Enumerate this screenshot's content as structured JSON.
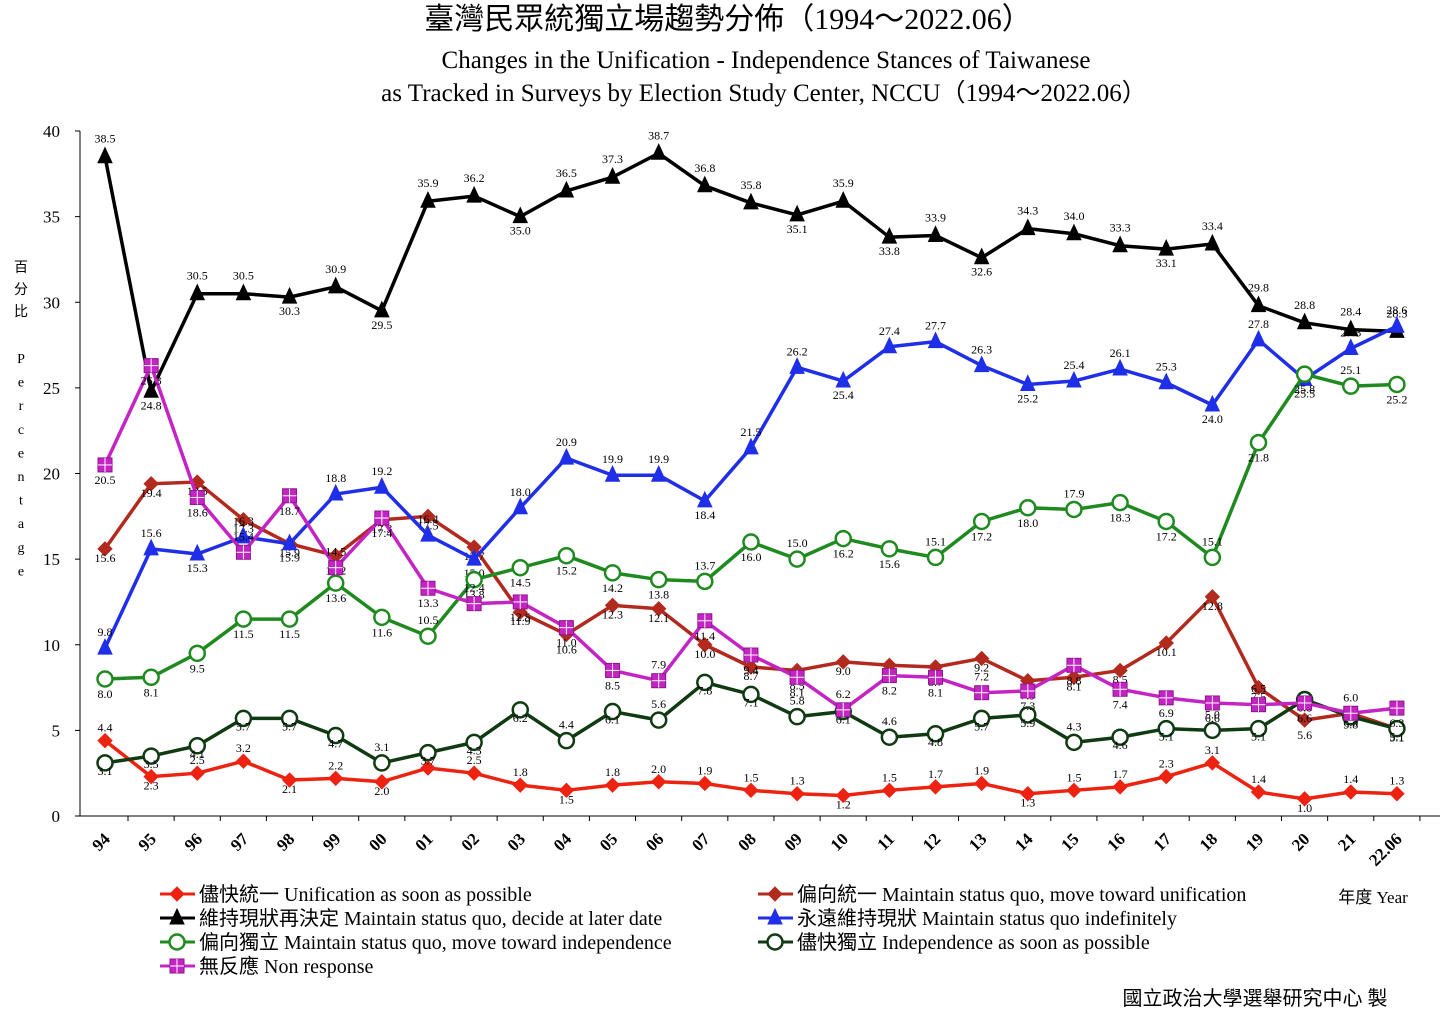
{
  "chart_data": {
    "type": "line",
    "title": "臺灣民眾統獨立場趨勢分佈（1994～2022.06）",
    "subtitle_line1": "Changes in the Unification - Independence Stances of Taiwanese",
    "subtitle_line2": "as Tracked in Surveys by Election Study Center, NCCU（1994～2022.06）",
    "ylabel_zh": [
      "百",
      "分",
      "比"
    ],
    "ylabel_en": [
      "P",
      "e",
      "r",
      "c",
      "e",
      "n",
      "t",
      "a",
      "g",
      "e"
    ],
    "xlabel": "年度 Year",
    "credit": "國立政治大學選舉研究中心 製",
    "ylim": [
      0,
      40
    ],
    "yticks": [
      "0",
      "5",
      "10",
      "15",
      "20",
      "25",
      "30",
      "35",
      "40"
    ],
    "categories": [
      "94",
      "95",
      "96",
      "97",
      "98",
      "99",
      "00",
      "01",
      "02",
      "03",
      "04",
      "05",
      "06",
      "07",
      "08",
      "09",
      "10",
      "11",
      "12",
      "13",
      "14",
      "15",
      "16",
      "17",
      "18",
      "19",
      "20",
      "21",
      "22.06"
    ],
    "series": [
      {
        "name": "儘快統一 Unification as soon as possible",
        "color": "#ee2211",
        "marker": "diamond",
        "values": [
          4.4,
          2.3,
          2.5,
          3.2,
          2.1,
          2.2,
          2.0,
          2.8,
          2.5,
          1.8,
          1.5,
          1.8,
          2.0,
          1.9,
          1.5,
          1.3,
          1.2,
          1.5,
          1.7,
          1.9,
          1.3,
          1.5,
          1.7,
          2.3,
          3.1,
          1.4,
          1.0,
          1.4,
          1.3
        ],
        "labels": [
          "4.4",
          "2.3",
          "2.5",
          "3.2",
          "2.1",
          "2.2",
          "2.0",
          "2.8",
          "2.5",
          "1.8",
          "1.5",
          "1.8",
          "2.0",
          "1.9",
          "1.5",
          "1.3",
          "1.2",
          "1.5",
          "1.7",
          "1.9",
          "1.3",
          "1.5",
          "1.7",
          "2.3",
          "3.1",
          "1.4",
          "1.0",
          "1.4",
          "1.3"
        ]
      },
      {
        "name": "偏向統一 Maintain status quo, move toward unification",
        "color": "#b22a1e",
        "marker": "diamond",
        "values": [
          15.6,
          19.4,
          19.5,
          17.3,
          15.9,
          15.2,
          17.3,
          17.5,
          15.7,
          11.9,
          10.6,
          12.3,
          12.1,
          10.0,
          8.7,
          8.5,
          9.0,
          8.8,
          8.7,
          9.2,
          7.9,
          8.1,
          8.5,
          10.1,
          12.8,
          7.5,
          5.6,
          6.0,
          5.1
        ],
        "labels": [
          "15.6",
          "19.4",
          "19.5",
          "17.3",
          "15.9",
          "15.2",
          "17.3",
          "17.5",
          "15.7",
          "11.9",
          "10.6",
          "12.3",
          "12.1",
          "10.0",
          "8.7",
          "8.5",
          "9.0",
          "8.8",
          "8.7",
          "9.2",
          "7.9",
          "8.1",
          "8.5",
          "10.1",
          "12.8",
          "7.5",
          "5.6",
          "6.0",
          "5.1"
        ]
      },
      {
        "name": "維持現狀再決定 Maintain status quo, decide at later date",
        "color": "#000000",
        "marker": "triangle",
        "values": [
          38.5,
          24.8,
          30.5,
          30.5,
          30.3,
          30.9,
          29.5,
          35.9,
          36.2,
          35.0,
          36.5,
          37.3,
          38.7,
          36.8,
          35.8,
          35.1,
          35.9,
          33.8,
          33.9,
          32.6,
          34.3,
          34.0,
          33.3,
          33.1,
          33.4,
          29.8,
          28.8,
          28.4,
          28.3
        ],
        "labels": [
          "38.5",
          "24.8",
          "30.5",
          "30.5",
          "30.3",
          "30.9",
          "29.5",
          "35.9",
          "36.2",
          "35.0",
          "36.5",
          "37.3",
          "38.7",
          "36.8",
          "35.8",
          "35.1",
          "35.9",
          "33.8",
          "33.9",
          "32.6",
          "34.3",
          "34.0",
          "33.3",
          "33.1",
          "33.4",
          "29.8",
          "28.8",
          "28.4",
          "28.3"
        ]
      },
      {
        "name": "永遠維持現狀 Maintain status quo indefinitely",
        "color": "#1f2ee8",
        "marker": "triangle",
        "values": [
          9.8,
          15.6,
          15.3,
          16.3,
          15.9,
          18.8,
          19.2,
          16.4,
          15.0,
          18.0,
          20.9,
          19.9,
          19.9,
          18.4,
          21.5,
          26.2,
          25.4,
          27.4,
          27.7,
          26.3,
          25.2,
          25.4,
          26.1,
          25.3,
          24.0,
          27.8,
          25.5,
          27.3,
          28.6
        ],
        "labels": [
          "9.8",
          "15.6",
          "15.3",
          "16.3",
          "15.9",
          "18.8",
          "19.2",
          "16.4",
          "15.0",
          "18.0",
          "20.9",
          "19.9",
          "19.9",
          "18.4",
          "21.5",
          "26.2",
          "25.4",
          "27.4",
          "27.7",
          "26.3",
          "25.2",
          "25.4",
          "26.1",
          "25.3",
          "24.0",
          "27.8",
          "25.5",
          "27.3",
          "28.6"
        ]
      },
      {
        "name": "偏向獨立 Maintain status quo, move toward independence",
        "color": "#1f8a1f",
        "marker": "circle",
        "values": [
          8.0,
          8.1,
          9.5,
          11.5,
          11.5,
          13.6,
          11.6,
          10.5,
          13.8,
          14.5,
          15.2,
          14.2,
          13.8,
          13.7,
          16.0,
          15.0,
          16.2,
          15.6,
          15.1,
          17.2,
          18.0,
          17.9,
          18.3,
          17.2,
          15.1,
          21.8,
          25.8,
          25.1,
          25.2
        ],
        "labels": [
          "8.0",
          "8.1",
          "9.5",
          "11.5",
          "11.5",
          "13.6",
          "11.6",
          "10.5",
          "13.8",
          "14.5",
          "15.2",
          "14.2",
          "13.8",
          "13.7",
          "16.0",
          "15.0",
          "16.2",
          "15.6",
          "15.1",
          "17.2",
          "18.0",
          "17.9",
          "18.3",
          "17.2",
          "15.1",
          "21.8",
          "25.8",
          "25.1",
          "25.2"
        ]
      },
      {
        "name": "儘快獨立 Independence as soon as possible",
        "color": "#0f3a12",
        "marker": "circle",
        "values": [
          3.1,
          3.5,
          4.1,
          5.7,
          5.7,
          4.7,
          3.1,
          3.7,
          4.3,
          6.2,
          4.4,
          6.1,
          5.6,
          7.8,
          7.1,
          5.8,
          6.1,
          4.6,
          4.8,
          5.7,
          5.9,
          4.3,
          4.6,
          5.1,
          5.0,
          5.1,
          6.8,
          5.8,
          5.1
        ],
        "labels": [
          "3.1",
          "3.5",
          "4.1",
          "5.7",
          "5.7",
          "4.7",
          "3.1",
          "3.7",
          "4.3",
          "6.2",
          "4.4",
          "6.1",
          "5.6",
          "7.8",
          "7.1",
          "5.8",
          "6.1",
          "4.6",
          "4.8",
          "5.7",
          "5.9",
          "4.3",
          "4.6",
          "5.1",
          "5.0",
          "5.1",
          "6.8",
          "5.8",
          "5.1"
        ]
      },
      {
        "name": "無反應 Non response",
        "color": "#c424c4",
        "marker": "square",
        "values": [
          20.5,
          26.3,
          18.6,
          15.4,
          18.7,
          14.5,
          17.4,
          13.3,
          12.4,
          12.5,
          11.0,
          8.5,
          7.9,
          11.4,
          9.4,
          8.1,
          6.2,
          8.2,
          8.1,
          7.2,
          7.3,
          8.8,
          7.4,
          6.9,
          6.6,
          6.5,
          6.6,
          6.0,
          6.3
        ],
        "labels": [
          "20.5",
          "26.3",
          "18.6",
          "15.4",
          "18.7",
          "14.5",
          "17.4",
          "13.3",
          "12.4",
          "12.5",
          "11.0",
          "8.5",
          "7.9",
          "11.4",
          "9.4",
          "8.1",
          "6.2",
          "8.2",
          "8.1",
          "7.2",
          "7.3",
          "8.8",
          "7.4",
          "6.9",
          "6.6",
          "6.5",
          "6.6",
          "6.0",
          "6.3"
        ]
      }
    ]
  }
}
